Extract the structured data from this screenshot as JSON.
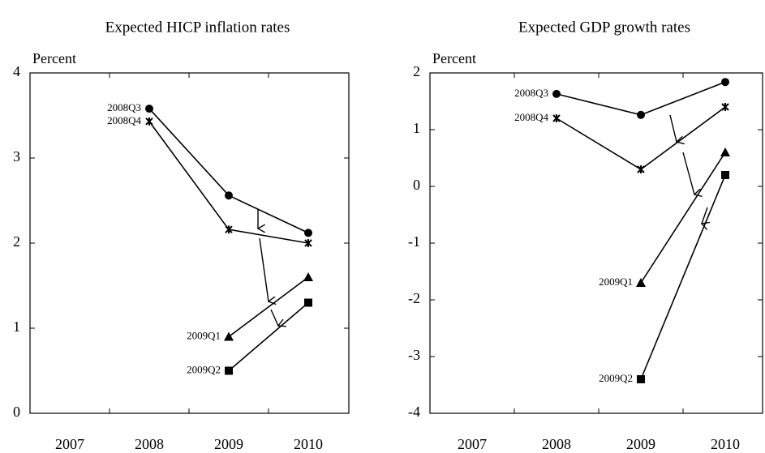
{
  "chart_data": [
    {
      "type": "line",
      "title": "Expected HICP inflation rates",
      "y_label": "Percent",
      "categories": [
        "2007",
        "2008",
        "2009",
        "2010"
      ],
      "ylim": [
        0,
        4
      ],
      "yticks": [
        0,
        1,
        2,
        3,
        4
      ],
      "grid": false,
      "series": [
        {
          "name": "2008Q3",
          "color": "#000000",
          "marker": "circle",
          "values": [
            null,
            3.58,
            2.56,
            2.12
          ]
        },
        {
          "name": "2008Q4",
          "color": "#000000",
          "marker": "star",
          "values": [
            null,
            3.43,
            2.16,
            2.0
          ]
        },
        {
          "name": "2009Q1",
          "color": "#000000",
          "marker": "triangle",
          "values": [
            null,
            null,
            0.9,
            1.6
          ]
        },
        {
          "name": "2009Q2",
          "color": "#000000",
          "marker": "square",
          "values": [
            null,
            null,
            0.5,
            1.3
          ]
        }
      ]
    },
    {
      "type": "line",
      "title": "Expected GDP growth rates",
      "y_label": "Percent",
      "categories": [
        "2007",
        "2008",
        "2009",
        "2010"
      ],
      "ylim": [
        -4,
        2
      ],
      "yticks": [
        -4,
        -3,
        -2,
        -1,
        0,
        1,
        2
      ],
      "grid": false,
      "series": [
        {
          "name": "2008Q3",
          "color": "#000000",
          "marker": "circle",
          "values": [
            null,
            1.63,
            1.26,
            1.84
          ]
        },
        {
          "name": "2008Q4",
          "color": "#000000",
          "marker": "star",
          "values": [
            null,
            1.2,
            0.3,
            1.4
          ]
        },
        {
          "name": "2009Q1",
          "color": "#000000",
          "marker": "triangle",
          "values": [
            null,
            null,
            -1.7,
            0.6
          ]
        },
        {
          "name": "2009Q2",
          "color": "#000000",
          "marker": "square",
          "values": [
            null,
            null,
            -3.4,
            0.2
          ]
        }
      ]
    }
  ]
}
